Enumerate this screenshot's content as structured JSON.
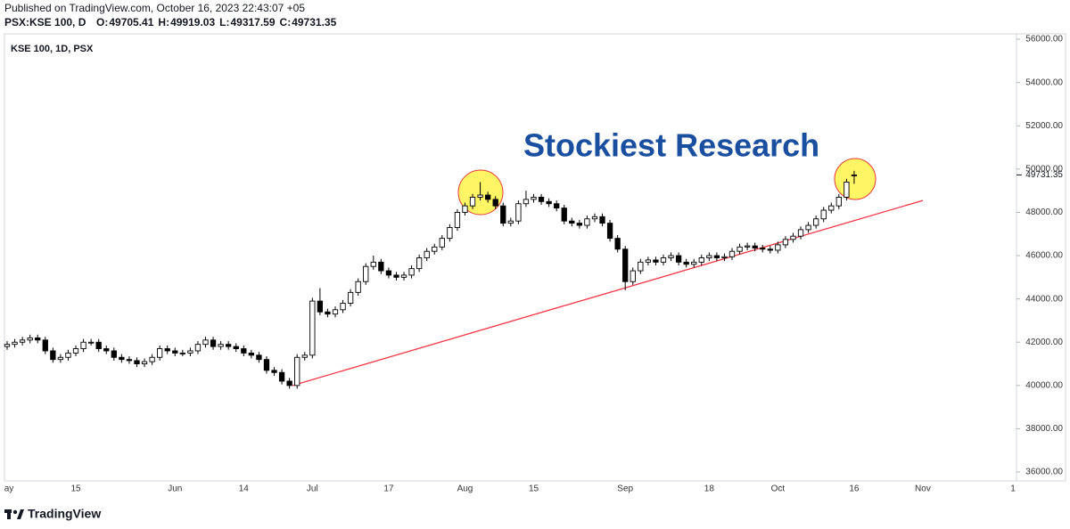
{
  "header": {
    "published": "Published on TradingView.com, October 16, 2023 22:43:07 +05",
    "symbol_line": "PSX:KSE 100, D",
    "ohlc_labels": [
      "O:",
      "H:",
      "L:",
      "C:"
    ]
  },
  "footer": {
    "brand": "TradingView"
  },
  "chart_data": {
    "type": "candlestick",
    "legend": "KSE 100, 1D, PSX",
    "annotation": "Stockiest Research",
    "categories": [
      "ay",
      null,
      null,
      null,
      null,
      null,
      null,
      null,
      null,
      "15",
      null,
      null,
      null,
      null,
      null,
      null,
      null,
      null,
      null,
      null,
      null,
      null,
      "Jun",
      null,
      null,
      null,
      null,
      null,
      null,
      null,
      null,
      "14",
      null,
      null,
      null,
      null,
      null,
      null,
      null,
      null,
      "Jul",
      null,
      null,
      null,
      null,
      null,
      null,
      null,
      null,
      null,
      "17",
      null,
      null,
      null,
      null,
      null,
      null,
      null,
      null,
      null,
      "Aug",
      null,
      null,
      null,
      null,
      null,
      null,
      null,
      null,
      "15",
      null,
      null,
      null,
      null,
      null,
      null,
      null,
      null,
      null,
      null,
      null,
      "Sep",
      null,
      null,
      null,
      null,
      null,
      null,
      null,
      null,
      null,
      null,
      "18",
      null,
      null,
      null,
      null,
      null,
      null,
      null,
      null,
      "Oct",
      null,
      null,
      null,
      null,
      null,
      null,
      null,
      null,
      null,
      "16"
    ],
    "future_x_labels": [
      "Nov",
      "1"
    ],
    "open": [
      41800,
      41900,
      42000,
      42100,
      42200,
      42100,
      41600,
      41200,
      41300,
      41500,
      41700,
      42000,
      42000,
      41700,
      41600,
      41300,
      41200,
      41150,
      41000,
      41100,
      41300,
      41700,
      41600,
      41500,
      41500,
      41600,
      41900,
      42100,
      41800,
      41900,
      41800,
      41700,
      41500,
      41400,
      41200,
      40700,
      40600,
      40200,
      40000,
      41300,
      41400,
      43900,
      43400,
      43300,
      43500,
      43800,
      44300,
      44800,
      45500,
      45700,
      45300,
      45100,
      45000,
      45100,
      45400,
      45900,
      46200,
      46400,
      46800,
      47300,
      48000,
      48300,
      48700,
      48800,
      48600,
      48300,
      47500,
      47600,
      48400,
      48600,
      48700,
      48500,
      48400,
      48200,
      47600,
      47500,
      47400,
      47700,
      47800,
      47500,
      46800,
      46300,
      44800,
      45300,
      45700,
      45800,
      45700,
      45900,
      46000,
      45700,
      45600,
      45700,
      45900,
      46000,
      45900,
      45950,
      46200,
      46400,
      46450,
      46350,
      46300,
      46250,
      46500,
      46750,
      46900,
      47200,
      47400,
      47700,
      48100,
      48300,
      48700,
      49705.41
    ],
    "high": [
      42050,
      42150,
      42250,
      42350,
      42350,
      42250,
      41750,
      41450,
      41650,
      41850,
      42150,
      42150,
      42150,
      41850,
      41750,
      41450,
      41350,
      41300,
      41250,
      41450,
      41850,
      41850,
      41750,
      41650,
      41750,
      42050,
      42250,
      42250,
      42050,
      42050,
      41950,
      41850,
      41650,
      41550,
      41350,
      40850,
      40750,
      40350,
      41450,
      41550,
      44050,
      44500,
      43550,
      43650,
      43950,
      44450,
      44950,
      45650,
      46000,
      45850,
      45450,
      45250,
      45250,
      45550,
      46050,
      46350,
      46550,
      46950,
      47450,
      48150,
      48450,
      48850,
      49400,
      48950,
      48750,
      48450,
      47750,
      48550,
      49000,
      48850,
      48850,
      48650,
      48550,
      48350,
      47750,
      47650,
      47850,
      47950,
      47950,
      47650,
      46950,
      46450,
      45450,
      45850,
      45950,
      45950,
      46050,
      46150,
      46150,
      45850,
      45850,
      46050,
      46150,
      46150,
      46100,
      46350,
      46550,
      46600,
      46600,
      46500,
      46450,
      46650,
      46900,
      47050,
      47350,
      47550,
      47850,
      48250,
      48450,
      48850,
      49550,
      49919.03
    ],
    "low": [
      41650,
      41750,
      41850,
      41950,
      41950,
      41450,
      41050,
      41050,
      41150,
      41350,
      41550,
      41850,
      41550,
      41450,
      41150,
      41050,
      41000,
      40850,
      40850,
      40950,
      41150,
      41450,
      41350,
      41350,
      41350,
      41450,
      41750,
      41650,
      41650,
      41650,
      41550,
      41350,
      41250,
      41050,
      40550,
      40450,
      40050,
      39850,
      39850,
      41150,
      41250,
      43250,
      43150,
      43150,
      43350,
      43650,
      44150,
      44650,
      45350,
      45150,
      44950,
      44850,
      44850,
      44950,
      45250,
      45750,
      46050,
      46250,
      46650,
      47150,
      47850,
      48150,
      48550,
      48450,
      48150,
      47350,
      47350,
      47450,
      48250,
      48450,
      48350,
      48250,
      48050,
      47450,
      47350,
      47250,
      47250,
      47550,
      47350,
      46650,
      46150,
      44400,
      44650,
      45150,
      45550,
      45550,
      45550,
      45750,
      45550,
      45450,
      45450,
      45550,
      45750,
      45750,
      45750,
      45800,
      46050,
      46250,
      46200,
      46150,
      46100,
      46100,
      46350,
      46600,
      46750,
      47050,
      47250,
      47550,
      47950,
      48150,
      48550,
      49317.59
    ],
    "close": [
      41900,
      42000,
      42100,
      42200,
      42100,
      41600,
      41200,
      41300,
      41500,
      41700,
      42000,
      42000,
      41700,
      41600,
      41300,
      41200,
      41150,
      41000,
      41100,
      41300,
      41700,
      41600,
      41500,
      41500,
      41600,
      41900,
      42100,
      41800,
      41900,
      41800,
      41700,
      41500,
      41400,
      41200,
      40700,
      40600,
      40200,
      40000,
      41300,
      41400,
      43900,
      43400,
      43300,
      43500,
      43800,
      44300,
      44800,
      45500,
      45700,
      45300,
      45100,
      45000,
      45100,
      45400,
      45900,
      46200,
      46400,
      46800,
      47300,
      48000,
      48300,
      48700,
      48800,
      48600,
      48300,
      47500,
      47600,
      48400,
      48600,
      48700,
      48500,
      48400,
      48200,
      47600,
      47500,
      47400,
      47700,
      47800,
      47500,
      46800,
      46300,
      44800,
      45300,
      45700,
      45800,
      45700,
      45900,
      46000,
      45700,
      45600,
      45700,
      45900,
      46000,
      45900,
      45950,
      46200,
      46400,
      46450,
      46350,
      46300,
      46250,
      46500,
      46750,
      46900,
      47200,
      47400,
      47700,
      48100,
      48300,
      48700,
      49400,
      49731.35
    ],
    "up_color": "#ffffff",
    "down_color": "#000000",
    "trendline": {
      "x": [
        37.4,
        120
      ],
      "y": [
        40000,
        48550
      ],
      "color": "#f23645"
    },
    "ylim": [
      35590,
      56250
    ],
    "yticks": [
      {
        "value": 36000,
        "label": "36000.00"
      },
      {
        "value": 38000,
        "label": "38000.00"
      },
      {
        "value": 40000,
        "label": "40000.00"
      },
      {
        "value": 42000,
        "label": "42000.00"
      },
      {
        "value": 44000,
        "label": "44000.00"
      },
      {
        "value": 46000,
        "label": "46000.00"
      },
      {
        "value": 48000,
        "label": "48000.00"
      },
      {
        "value": 50000,
        "label": "50000.00"
      },
      {
        "value": 52000,
        "label": "52000.00"
      },
      {
        "value": 54000,
        "label": "54000.00"
      },
      {
        "value": 56000,
        "label": "56000.00"
      }
    ],
    "grid": false
  }
}
